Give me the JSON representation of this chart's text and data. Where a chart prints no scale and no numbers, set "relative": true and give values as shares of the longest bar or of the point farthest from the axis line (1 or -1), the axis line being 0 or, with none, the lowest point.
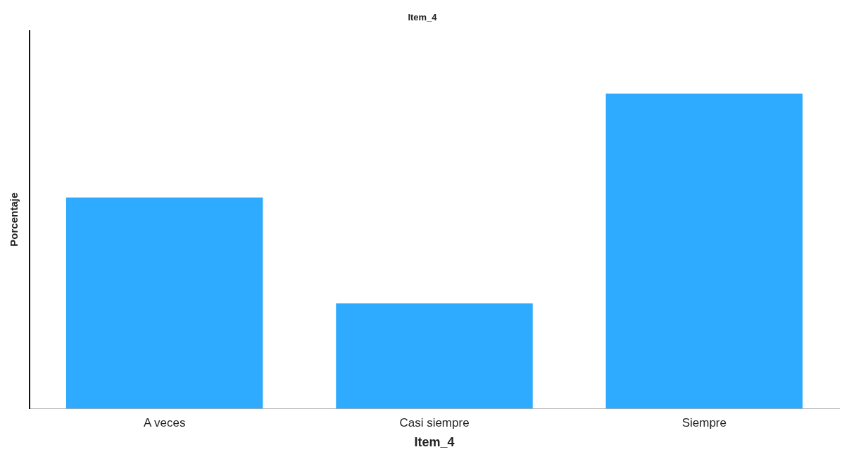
{
  "chart_data": {
    "type": "bar",
    "title": "Item_4",
    "xlabel": "Item_4",
    "ylabel": "Porcentaje",
    "relative": true,
    "categories": [
      "A veces",
      "Casi siempre",
      "Siempre"
    ],
    "values": [
      0.67,
      0.334,
      1
    ],
    "color": "#2eaaff"
  }
}
